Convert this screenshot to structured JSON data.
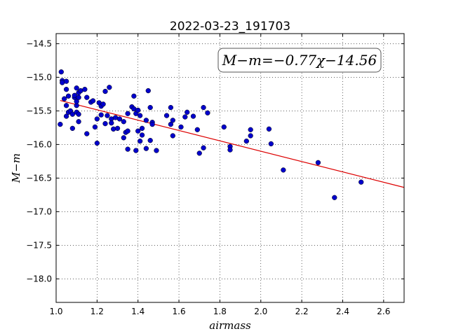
{
  "chart_data": {
    "type": "scatter",
    "title": "2022-03-23_191703",
    "xlabel": "airmass",
    "ylabel": "M−m",
    "xlim": [
      1.0,
      2.7
    ],
    "ylim": [
      -18.35,
      -14.35
    ],
    "x_ticks": [
      1.0,
      1.2,
      1.4,
      1.6,
      1.8,
      2.0,
      2.2,
      2.4,
      2.6
    ],
    "x_tick_labels": [
      "1.0",
      "1.2",
      "1.4",
      "1.6",
      "1.8",
      "2.0",
      "2.2",
      "2.4",
      "2.6"
    ],
    "y_ticks": [
      -14.5,
      -15.0,
      -15.5,
      -16.0,
      -16.5,
      -17.0,
      -17.5,
      -18.0
    ],
    "y_tick_labels": [
      "−14.5",
      "−15.0",
      "−15.5",
      "−16.0",
      "−16.5",
      "−17.0",
      "−17.5",
      "−18.0"
    ],
    "grid": true,
    "annotation": "M−m=−0.77χ−14.56",
    "point_color": "#0000cc",
    "fit_color": "#dd0000",
    "fit": {
      "slope": -0.77,
      "intercept": -14.56,
      "x_range": [
        1.02,
        2.7
      ]
    },
    "series": [
      {
        "points": [
          [
            1.02,
            -15.7
          ],
          [
            1.025,
            -14.92
          ],
          [
            1.03,
            -15.05
          ],
          [
            1.03,
            -15.08
          ],
          [
            1.04,
            -15.32
          ],
          [
            1.05,
            -15.06
          ],
          [
            1.05,
            -15.42
          ],
          [
            1.05,
            -15.58
          ],
          [
            1.05,
            -15.18
          ],
          [
            1.06,
            -15.52
          ],
          [
            1.06,
            -15.28
          ],
          [
            1.07,
            -15.5
          ],
          [
            1.08,
            -15.76
          ],
          [
            1.08,
            -15.55
          ],
          [
            1.09,
            -15.3
          ],
          [
            1.09,
            -15.27
          ],
          [
            1.1,
            -15.16
          ],
          [
            1.1,
            -15.42
          ],
          [
            1.1,
            -15.36
          ],
          [
            1.1,
            -15.52
          ],
          [
            1.11,
            -15.3
          ],
          [
            1.11,
            -15.55
          ],
          [
            1.11,
            -15.66
          ],
          [
            1.11,
            -15.23
          ],
          [
            1.12,
            -15.2
          ],
          [
            1.14,
            -15.18
          ],
          [
            1.15,
            -15.3
          ],
          [
            1.15,
            -15.84
          ],
          [
            1.17,
            -15.37
          ],
          [
            1.18,
            -15.35
          ],
          [
            1.19,
            -15.74
          ],
          [
            1.2,
            -15.62
          ],
          [
            1.2,
            -15.98
          ],
          [
            1.21,
            -15.38
          ],
          [
            1.22,
            -15.56
          ],
          [
            1.22,
            -15.43
          ],
          [
            1.23,
            -15.4
          ],
          [
            1.24,
            -15.69
          ],
          [
            1.24,
            -15.21
          ],
          [
            1.25,
            -15.57
          ],
          [
            1.26,
            -15.15
          ],
          [
            1.27,
            -15.62
          ],
          [
            1.27,
            -15.68
          ],
          [
            1.28,
            -15.77
          ],
          [
            1.29,
            -15.6
          ],
          [
            1.3,
            -15.76
          ],
          [
            1.31,
            -15.62
          ],
          [
            1.33,
            -15.66
          ],
          [
            1.33,
            -15.9
          ],
          [
            1.34,
            -15.82
          ],
          [
            1.35,
            -15.54
          ],
          [
            1.35,
            -15.8
          ],
          [
            1.35,
            -16.07
          ],
          [
            1.37,
            -15.44
          ],
          [
            1.38,
            -15.47
          ],
          [
            1.38,
            -15.28
          ],
          [
            1.39,
            -15.54
          ],
          [
            1.39,
            -16.09
          ],
          [
            1.4,
            -15.49
          ],
          [
            1.4,
            -15.8
          ],
          [
            1.41,
            -15.95
          ],
          [
            1.41,
            -15.57
          ],
          [
            1.42,
            -15.86
          ],
          [
            1.42,
            -15.76
          ],
          [
            1.44,
            -16.06
          ],
          [
            1.44,
            -15.64
          ],
          [
            1.45,
            -15.2
          ],
          [
            1.46,
            -15.45
          ],
          [
            1.46,
            -15.94
          ],
          [
            1.47,
            -15.67
          ],
          [
            1.47,
            -15.7
          ],
          [
            1.49,
            -16.09
          ],
          [
            1.54,
            -15.57
          ],
          [
            1.56,
            -15.7
          ],
          [
            1.56,
            -15.45
          ],
          [
            1.57,
            -15.64
          ],
          [
            1.57,
            -15.87
          ],
          [
            1.61,
            -15.74
          ],
          [
            1.63,
            -15.59
          ],
          [
            1.64,
            -15.52
          ],
          [
            1.67,
            -15.58
          ],
          [
            1.69,
            -15.78
          ],
          [
            1.7,
            -16.13
          ],
          [
            1.72,
            -15.45
          ],
          [
            1.72,
            -16.05
          ],
          [
            1.74,
            -15.53
          ],
          [
            1.82,
            -15.74
          ],
          [
            1.85,
            -16.03
          ],
          [
            1.85,
            -16.08
          ],
          [
            1.93,
            -15.95
          ],
          [
            1.95,
            -15.78
          ],
          [
            1.95,
            -15.87
          ],
          [
            2.04,
            -15.77
          ],
          [
            2.05,
            -15.99
          ],
          [
            2.11,
            -16.38
          ],
          [
            2.28,
            -16.27
          ],
          [
            2.36,
            -16.79
          ],
          [
            2.49,
            -16.56
          ]
        ]
      }
    ]
  }
}
